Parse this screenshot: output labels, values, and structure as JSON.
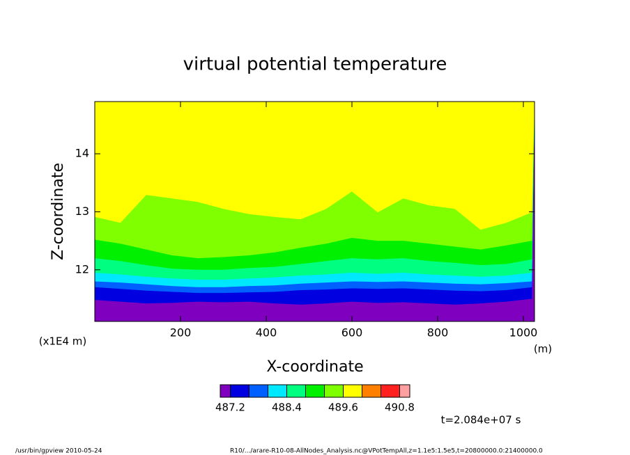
{
  "chart_data": {
    "type": "contour",
    "title": "virtual potential temperature",
    "xlabel": "X-coordinate",
    "ylabel": "Z-coordinate",
    "xunit": "(m)",
    "yunit": "(x1E4 m)",
    "annotation": "t=2.084e+07 s",
    "footer_left": "/usr/bin/gpview   2010-05-24",
    "footer_right": "R10/.../arare-R10-08-AllNodes_Analysis.nc@VPotTempAll,z=1.1e5:1.5e5,t=20800000.0:21400000.0",
    "xlim": [
      0,
      1026
    ],
    "ylim": [
      11.11,
      14.9
    ],
    "xticks": [
      200,
      400,
      600,
      800,
      1000
    ],
    "yticks": [
      12,
      13,
      14
    ],
    "levels": [
      487.2,
      487.6,
      488.0,
      488.4,
      488.8,
      489.2,
      489.6,
      490.0,
      490.4,
      490.8
    ],
    "colors": [
      "#7f00bf",
      "#0000e0",
      "#0060ff",
      "#00e8ff",
      "#00ff80",
      "#00f000",
      "#80ff00",
      "#ffff00",
      "#ff8000",
      "#ff2020",
      "#ffa0a0"
    ],
    "colorbar_ticks": [
      487.2,
      488.4,
      489.6,
      490.8
    ],
    "x": [
      0,
      60,
      120,
      180,
      240,
      300,
      360,
      420,
      480,
      540,
      600,
      660,
      720,
      780,
      840,
      900,
      960,
      1020
    ],
    "boundaries": [
      {
        "level": 487.2,
        "z": [
          11.48,
          11.45,
          11.42,
          11.43,
          11.45,
          11.44,
          11.45,
          11.42,
          11.4,
          11.42,
          11.45,
          11.43,
          11.44,
          11.42,
          11.4,
          11.42,
          11.45,
          11.5
        ]
      },
      {
        "level": 487.6,
        "z": [
          11.7,
          11.67,
          11.64,
          11.62,
          11.6,
          11.6,
          11.61,
          11.62,
          11.65,
          11.66,
          11.68,
          11.67,
          11.68,
          11.66,
          11.64,
          11.63,
          11.65,
          11.7
        ]
      },
      {
        "level": 488.0,
        "z": [
          11.8,
          11.78,
          11.75,
          11.72,
          11.7,
          11.7,
          11.72,
          11.73,
          11.76,
          11.78,
          11.8,
          11.79,
          11.8,
          11.78,
          11.76,
          11.75,
          11.77,
          11.8
        ]
      },
      {
        "level": 488.4,
        "z": [
          11.95,
          11.92,
          11.88,
          11.85,
          11.83,
          11.83,
          11.85,
          11.87,
          11.9,
          11.92,
          11.95,
          11.93,
          11.95,
          11.92,
          11.9,
          11.88,
          11.9,
          11.95
        ]
      },
      {
        "level": 488.8,
        "z": [
          12.2,
          12.15,
          12.08,
          12.02,
          12.0,
          12.0,
          12.03,
          12.05,
          12.1,
          12.15,
          12.2,
          12.18,
          12.2,
          12.15,
          12.12,
          12.08,
          12.1,
          12.18
        ]
      },
      {
        "level": 489.2,
        "z": [
          12.52,
          12.45,
          12.35,
          12.25,
          12.2,
          12.22,
          12.25,
          12.3,
          12.38,
          12.45,
          12.55,
          12.5,
          12.5,
          12.45,
          12.4,
          12.35,
          12.42,
          12.5
        ]
      },
      {
        "level": 489.6,
        "z": [
          12.91,
          12.81,
          13.29,
          13.23,
          13.17,
          13.05,
          12.96,
          12.91,
          12.87,
          13.05,
          13.35,
          12.99,
          13.23,
          13.11,
          13.05,
          12.69,
          12.81,
          12.99
        ]
      }
    ]
  }
}
